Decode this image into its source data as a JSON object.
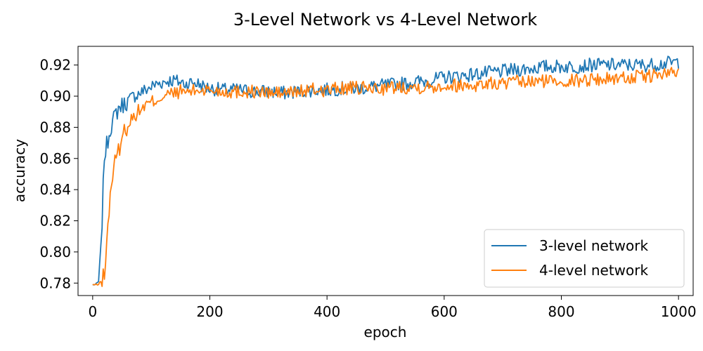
{
  "chart_data": {
    "type": "line",
    "title": "3-Level Network vs 4-Level Network",
    "xlabel": "epoch",
    "ylabel": "accuracy",
    "xlim": [
      -25,
      1025
    ],
    "ylim": [
      0.772,
      0.932
    ],
    "xticks": [
      0,
      200,
      400,
      600,
      800,
      1000
    ],
    "yticks": [
      0.78,
      0.8,
      0.82,
      0.84,
      0.86,
      0.88,
      0.9,
      0.92
    ],
    "grid": false,
    "legend_position": "lower-right",
    "series": [
      {
        "name": "3-level network",
        "color": "#1f77b4",
        "x": [
          0,
          5,
          10,
          15,
          20,
          25,
          30,
          35,
          40,
          45,
          50,
          60,
          70,
          80,
          90,
          100,
          110,
          120,
          130,
          140,
          150,
          160,
          170,
          180,
          190,
          200,
          225,
          250,
          275,
          300,
          325,
          350,
          375,
          400,
          425,
          450,
          475,
          500,
          525,
          550,
          575,
          600,
          625,
          650,
          675,
          700,
          725,
          750,
          775,
          800,
          825,
          850,
          875,
          900,
          925,
          950,
          975,
          1000
        ],
        "y": [
          0.779,
          0.779,
          0.781,
          0.81,
          0.862,
          0.87,
          0.88,
          0.884,
          0.889,
          0.893,
          0.894,
          0.897,
          0.9,
          0.902,
          0.904,
          0.906,
          0.908,
          0.909,
          0.91,
          0.91,
          0.909,
          0.908,
          0.909,
          0.908,
          0.906,
          0.905,
          0.904,
          0.904,
          0.903,
          0.903,
          0.902,
          0.903,
          0.904,
          0.904,
          0.905,
          0.905,
          0.906,
          0.907,
          0.908,
          0.909,
          0.91,
          0.912,
          0.913,
          0.914,
          0.915,
          0.916,
          0.917,
          0.918,
          0.919,
          0.919,
          0.919,
          0.92,
          0.92,
          0.92,
          0.92,
          0.92,
          0.921,
          0.922
        ]
      },
      {
        "name": "4-level network",
        "color": "#ff7f0e",
        "x": [
          0,
          5,
          10,
          15,
          20,
          25,
          30,
          35,
          40,
          45,
          50,
          60,
          70,
          80,
          90,
          100,
          110,
          120,
          130,
          140,
          150,
          160,
          170,
          180,
          190,
          200,
          225,
          250,
          275,
          300,
          325,
          350,
          375,
          400,
          425,
          450,
          475,
          500,
          525,
          550,
          575,
          600,
          625,
          650,
          675,
          700,
          725,
          750,
          775,
          800,
          825,
          850,
          875,
          900,
          925,
          950,
          975,
          1000
        ],
        "y": [
          0.779,
          0.779,
          0.779,
          0.782,
          0.785,
          0.81,
          0.838,
          0.852,
          0.86,
          0.866,
          0.874,
          0.882,
          0.887,
          0.891,
          0.894,
          0.896,
          0.898,
          0.9,
          0.901,
          0.902,
          0.903,
          0.903,
          0.903,
          0.904,
          0.904,
          0.904,
          0.903,
          0.903,
          0.903,
          0.902,
          0.902,
          0.903,
          0.904,
          0.904,
          0.905,
          0.905,
          0.905,
          0.905,
          0.906,
          0.906,
          0.906,
          0.907,
          0.907,
          0.907,
          0.908,
          0.908,
          0.909,
          0.909,
          0.91,
          0.91,
          0.91,
          0.911,
          0.911,
          0.912,
          0.912,
          0.913,
          0.914,
          0.915
        ]
      }
    ]
  }
}
